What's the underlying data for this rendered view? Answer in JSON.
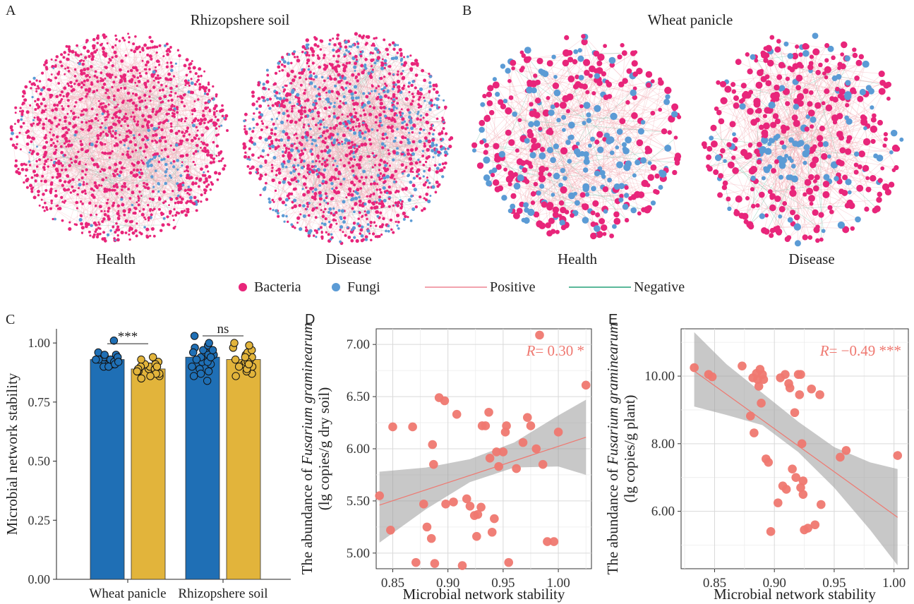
{
  "panels": {
    "a": {
      "letter": "A",
      "title": "Rhizopshere soil",
      "left_label": "Health",
      "right_label": "Disease"
    },
    "b": {
      "letter": "B",
      "title": "Wheat panicle",
      "left_label": "Health",
      "right_label": "Disease"
    },
    "c": {
      "letter": "C"
    },
    "d": {
      "letter": "D"
    },
    "e": {
      "letter": "E"
    }
  },
  "legend": {
    "bacteria": {
      "label": "Bacteria",
      "color": "#e8257a"
    },
    "fungi": {
      "label": "Fungi",
      "color": "#5b9bd5"
    },
    "positive": {
      "label": "Positive",
      "color": "#f2a3ae"
    },
    "negative": {
      "label": "Negative",
      "color": "#5bb89a"
    }
  },
  "chart_data": [
    {
      "id": "C",
      "type": "bar",
      "categories": [
        "Wheat panicle",
        "Rhizopshere soil"
      ],
      "ylabel": "Microbial network stability",
      "xlabel": "",
      "ylim": [
        0,
        1.06
      ],
      "yticks": [
        "0.00",
        "0.25",
        "0.50",
        "0.75",
        "1.00"
      ],
      "colors": {
        "Health": "#1f6fb5",
        "Disease": "#e2b43b"
      },
      "bars": [
        {
          "category": "Wheat panicle",
          "group": "Health",
          "value": 0.93
        },
        {
          "category": "Wheat panicle",
          "group": "Disease",
          "value": 0.89
        },
        {
          "category": "Rhizopshere soil",
          "group": "Health",
          "value": 0.94
        },
        {
          "category": "Rhizopshere soil",
          "group": "Disease",
          "value": 0.93
        }
      ],
      "points": [
        {
          "bar": 0,
          "values": [
            0.9,
            0.91,
            0.92,
            0.93,
            0.93,
            0.94,
            0.94,
            0.95,
            0.91,
            0.92,
            0.93,
            0.96,
            0.9,
            0.92,
            0.94,
            0.93,
            0.91,
            0.95,
            0.92,
            0.93,
            1.01
          ]
        },
        {
          "bar": 1,
          "values": [
            0.85,
            0.86,
            0.87,
            0.88,
            0.89,
            0.9,
            0.91,
            0.92,
            0.93,
            0.94,
            0.88,
            0.89,
            0.9,
            0.87,
            0.86,
            0.92,
            0.91,
            0.89,
            0.9,
            0.88
          ]
        },
        {
          "bar": 2,
          "values": [
            0.84,
            0.86,
            0.88,
            0.9,
            0.92,
            0.94,
            0.95,
            0.96,
            0.97,
            0.98,
            0.99,
            1.0,
            1.03,
            0.89,
            0.91,
            0.93,
            0.95,
            0.97,
            0.87,
            0.92,
            0.94,
            0.96
          ]
        },
        {
          "bar": 3,
          "values": [
            0.86,
            0.87,
            0.88,
            0.9,
            0.91,
            0.92,
            0.93,
            0.94,
            0.95,
            0.96,
            0.97,
            0.98,
            0.99,
            1.0,
            0.89,
            0.9,
            0.92,
            0.94,
            0.93,
            0.91
          ]
        }
      ],
      "significance": [
        {
          "category": "Wheat panicle",
          "label": "***"
        },
        {
          "category": "Rhizopshere soil",
          "label": "ns"
        }
      ]
    },
    {
      "id": "D",
      "type": "scatter",
      "xlabel": "Microbial network stability",
      "ylabel_species": "Fusarium graminearum",
      "ylabel_prefix": "The abundance of ",
      "ylabel2": "(lg copies/g dry soil)",
      "xlim": [
        0.835,
        1.03
      ],
      "ylim": [
        4.85,
        7.15
      ],
      "xticks": [
        "0.85",
        "0.90",
        "0.95",
        "1.00"
      ],
      "yticks": [
        "5.00",
        "5.50",
        "6.00",
        "6.50",
        "7.00"
      ],
      "annotation_r": "R",
      "annotation_rest": "= 0.30 *",
      "fit": {
        "x": [
          0.838,
          1.025
        ],
        "y": [
          5.46,
          6.11
        ]
      },
      "ci_upper": [
        [
          0.838,
          5.78
        ],
        [
          0.88,
          5.82
        ],
        [
          0.92,
          5.9
        ],
        [
          0.96,
          6.06
        ],
        [
          1.0,
          6.32
        ],
        [
          1.025,
          6.47
        ]
      ],
      "ci_lower": [
        [
          0.838,
          5.1
        ],
        [
          0.88,
          5.42
        ],
        [
          0.92,
          5.68
        ],
        [
          0.96,
          5.82
        ],
        [
          1.0,
          5.83
        ],
        [
          1.025,
          5.75
        ]
      ],
      "x": [
        0.838,
        0.848,
        0.85,
        0.868,
        0.871,
        0.878,
        0.881,
        0.885,
        0.886,
        0.887,
        0.888,
        0.892,
        0.897,
        0.898,
        0.905,
        0.908,
        0.913,
        0.917,
        0.92,
        0.924,
        0.926,
        0.927,
        0.93,
        0.931,
        0.934,
        0.937,
        0.938,
        0.94,
        0.942,
        0.944,
        0.946,
        0.95,
        0.952,
        0.953,
        0.955,
        0.962,
        0.968,
        0.972,
        0.975,
        0.98,
        0.983,
        0.986,
        0.99,
        0.996,
        1.0,
        1.025
      ],
      "y": [
        5.55,
        5.22,
        6.21,
        6.21,
        4.91,
        5.47,
        5.25,
        5.14,
        6.04,
        5.85,
        4.9,
        6.49,
        6.46,
        5.47,
        5.49,
        6.33,
        4.88,
        5.52,
        5.45,
        5.36,
        5.16,
        5.37,
        5.44,
        6.22,
        6.22,
        6.35,
        5.91,
        5.2,
        5.33,
        5.97,
        5.83,
        5.97,
        6.16,
        6.22,
        4.91,
        5.81,
        6.06,
        6.3,
        6.22,
        6.0,
        7.09,
        5.85,
        5.11,
        5.11,
        6.16,
        6.61
      ]
    },
    {
      "id": "E",
      "type": "scatter",
      "xlabel": "Microbial network stability",
      "ylabel_species": "Fusarium graminearum",
      "ylabel_prefix": "The abundance of ",
      "ylabel2": "(lg copies/g plant)",
      "xlim": [
        0.822,
        1.012
      ],
      "ylim": [
        4.3,
        11.4
      ],
      "xticks": [
        "0.85",
        "0.90",
        "0.95",
        "1.00"
      ],
      "yticks": [
        "6.00",
        "8.00",
        "10.00"
      ],
      "annotation_r": "R",
      "annotation_rest": "= −0.49 ***",
      "fit": {
        "x": [
          0.833,
          1.003
        ],
        "y": [
          10.15,
          5.82
        ]
      },
      "ci_upper": [
        [
          0.833,
          11.3
        ],
        [
          0.86,
          10.35
        ],
        [
          0.89,
          9.5
        ],
        [
          0.92,
          8.65
        ],
        [
          0.95,
          7.9
        ],
        [
          0.98,
          7.45
        ],
        [
          1.003,
          7.25
        ]
      ],
      "ci_lower": [
        [
          0.833,
          9.1
        ],
        [
          0.86,
          8.85
        ],
        [
          0.89,
          8.55
        ],
        [
          0.92,
          7.75
        ],
        [
          0.95,
          6.7
        ],
        [
          0.98,
          5.45
        ],
        [
          1.003,
          4.4
        ]
      ],
      "x": [
        0.833,
        0.845,
        0.848,
        0.873,
        0.88,
        0.882,
        0.883,
        0.885,
        0.886,
        0.887,
        0.888,
        0.889,
        0.89,
        0.891,
        0.893,
        0.895,
        0.897,
        0.903,
        0.905,
        0.907,
        0.909,
        0.91,
        0.912,
        0.913,
        0.915,
        0.917,
        0.918,
        0.92,
        0.921,
        0.922,
        0.922,
        0.923,
        0.924,
        0.924,
        0.925,
        0.928,
        0.931,
        0.934,
        0.938,
        0.939,
        0.955,
        0.96,
        1.003
      ],
      "y": [
        10.25,
        10.05,
        9.98,
        10.3,
        8.82,
        9.95,
        8.32,
        10.08,
        9.9,
        9.7,
        10.2,
        9.2,
        10.05,
        9.9,
        7.55,
        7.45,
        5.4,
        6.25,
        9.95,
        6.75,
        10.05,
        6.65,
        9.78,
        9.65,
        7.25,
        8.92,
        7.0,
        10.05,
        9.45,
        10.05,
        6.7,
        8.0,
        6.5,
        6.9,
        5.45,
        5.5,
        9.62,
        5.6,
        9.45,
        6.2,
        7.6,
        7.8,
        7.65
      ]
    }
  ]
}
